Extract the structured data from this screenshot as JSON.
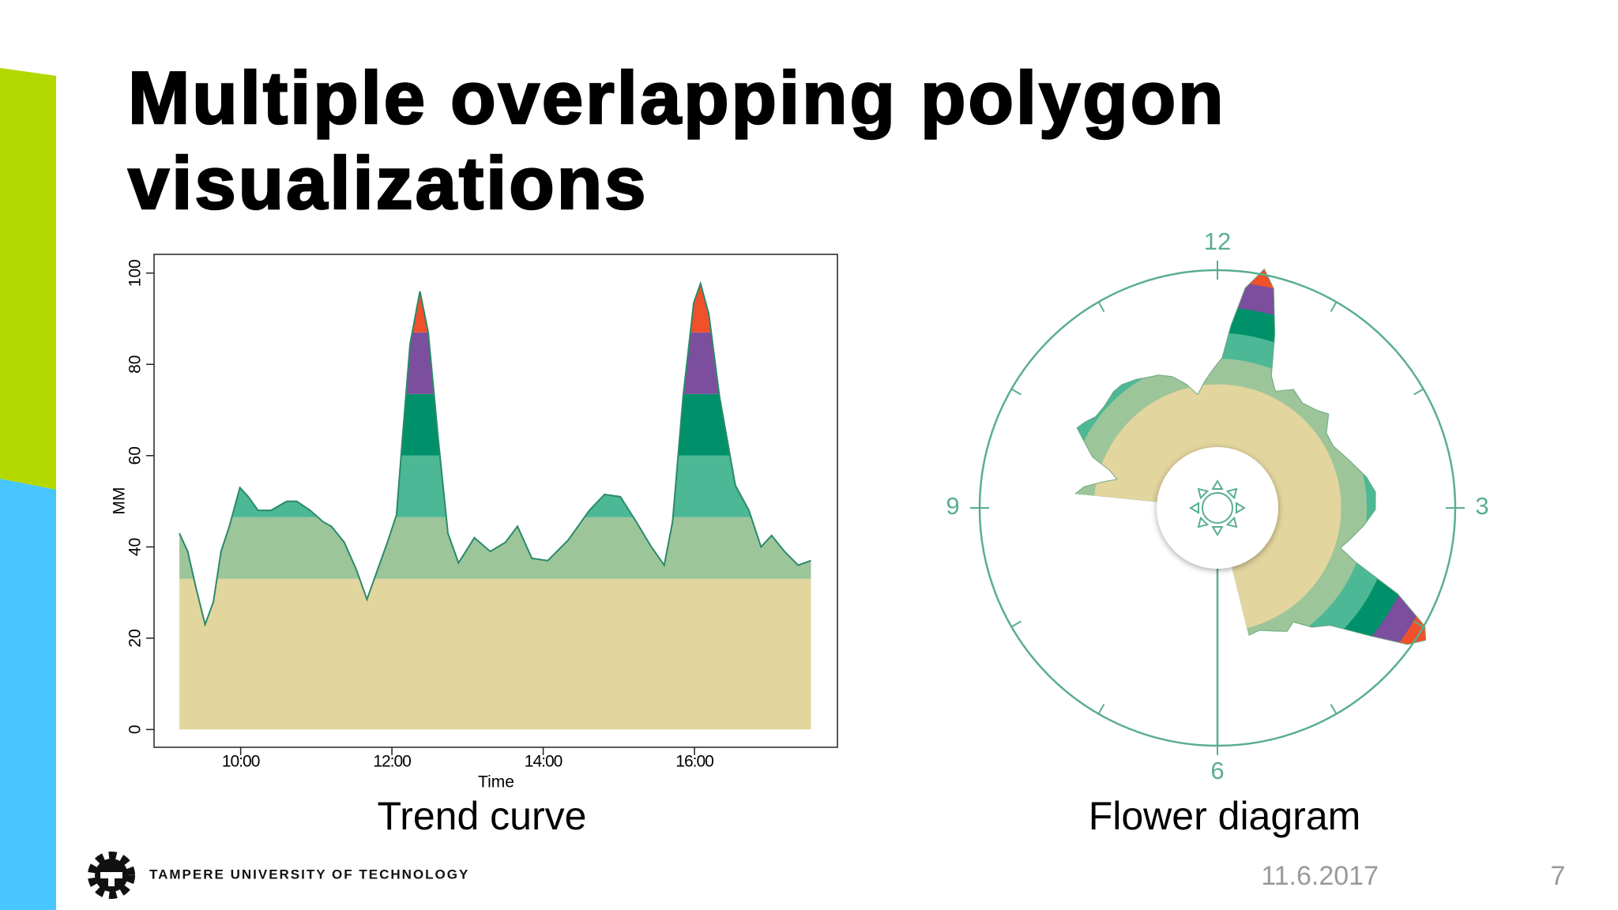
{
  "title": [
    "Multiple overlapping polygon",
    "visualizations"
  ],
  "footer": {
    "institution": "TAMPERE UNIVERSITY OF TECHNOLOGY",
    "date": "11.6.2017",
    "page": 7
  },
  "chart_data": [
    {
      "type": "area",
      "caption": "Trend curve",
      "xlabel": "Time",
      "ylabel": "MM",
      "x": [
        9.19,
        9.3,
        9.41,
        9.53,
        9.64,
        9.74,
        9.85,
        9.99,
        10.1,
        10.23,
        10.4,
        10.61,
        10.74,
        10.92,
        11.09,
        11.2,
        11.37,
        11.53,
        11.67,
        11.81,
        11.94,
        12.06,
        12.14,
        12.24,
        12.37,
        12.48,
        12.61,
        12.74,
        12.88,
        13.09,
        13.3,
        13.5,
        13.66,
        13.85,
        14.06,
        14.33,
        14.61,
        14.81,
        15.02,
        15.23,
        15.43,
        15.6,
        15.71,
        15.85,
        15.99,
        16.08,
        16.19,
        16.33,
        16.54,
        16.72,
        16.88,
        17.02,
        17.19,
        17.37,
        17.54
      ],
      "values": [
        43,
        39,
        31,
        23,
        28,
        39,
        44.5,
        53,
        51,
        48,
        48,
        50,
        50,
        48,
        45.5,
        44.5,
        41,
        35,
        28.5,
        35,
        41,
        47,
        64,
        84.5,
        96,
        87,
        64,
        43,
        36.5,
        42,
        39,
        41,
        44.5,
        37.5,
        37,
        41.5,
        48,
        51.5,
        51,
        45.5,
        40,
        36,
        45.5,
        73,
        93.5,
        97.7,
        91,
        73,
        53.5,
        48,
        40,
        42.5,
        39,
        36,
        37
      ],
      "bands": [
        {
          "to": 33,
          "color": "#e3d59e"
        },
        {
          "to": 46.5,
          "color": "#9dc59a"
        },
        {
          "to": 60,
          "color": "#4db895"
        },
        {
          "to": 73.5,
          "color": "#00916a"
        },
        {
          "to": 87,
          "color": "#7b4f9d"
        },
        {
          "to": 100,
          "color": "#f0502a"
        }
      ],
      "line_color": "#2a8a6a",
      "xlim": [
        8.855,
        17.89
      ],
      "ylim": [
        -3.9,
        104.1
      ],
      "xticks": [
        {
          "value": 10,
          "label": "10:00"
        },
        {
          "value": 12,
          "label": "12:00"
        },
        {
          "value": 14,
          "label": "14:00"
        },
        {
          "value": 16,
          "label": "16:00"
        }
      ],
      "yticks": [
        0,
        20,
        40,
        60,
        80,
        100
      ]
    },
    {
      "type": "polar",
      "caption": "Flower diagram",
      "x": [
        9.19,
        9.3,
        9.41,
        9.53,
        9.64,
        9.74,
        9.85,
        9.99,
        10.1,
        10.23,
        10.4,
        10.61,
        10.74,
        10.92,
        11.09,
        11.2,
        11.37,
        11.53,
        11.67,
        11.81,
        11.94,
        12.06,
        12.14,
        12.24,
        12.37,
        12.48,
        12.61,
        12.74,
        12.88,
        13.09,
        13.3,
        13.5,
        13.66,
        13.85,
        14.06,
        14.33,
        14.61,
        14.81,
        15.02,
        15.23,
        15.43,
        15.6,
        15.71,
        15.85,
        15.99,
        16.08,
        16.19,
        16.33,
        16.54,
        16.72,
        16.88,
        17.02,
        17.19,
        17.37,
        17.54
      ],
      "values": [
        43,
        39,
        31,
        23,
        28,
        39,
        44.5,
        53,
        51,
        48,
        48,
        50,
        50,
        48,
        45.5,
        44.5,
        41,
        35,
        28.5,
        35,
        41,
        47,
        64,
        84.5,
        96,
        87,
        64,
        43,
        36.5,
        42,
        39,
        41,
        44.5,
        37.5,
        37,
        41.5,
        48,
        51.5,
        51,
        45.5,
        40,
        36,
        45.5,
        73,
        93.5,
        97.7,
        91,
        73,
        53.5,
        48,
        40,
        42.5,
        39,
        36,
        37
      ],
      "bands": [
        {
          "to": 33,
          "color": "#e3d59e"
        },
        {
          "to": 46.5,
          "color": "#9dc59a"
        },
        {
          "to": 60,
          "color": "#4db895"
        },
        {
          "to": 73.5,
          "color": "#00916a"
        },
        {
          "to": 87,
          "color": "#7b4f9d"
        },
        {
          "to": 100,
          "color": "#f0502a"
        }
      ],
      "axis_color": "#5aae8e",
      "rlim": [
        -32,
        93
      ],
      "xticks": [
        12,
        3,
        6,
        9
      ]
    }
  ]
}
